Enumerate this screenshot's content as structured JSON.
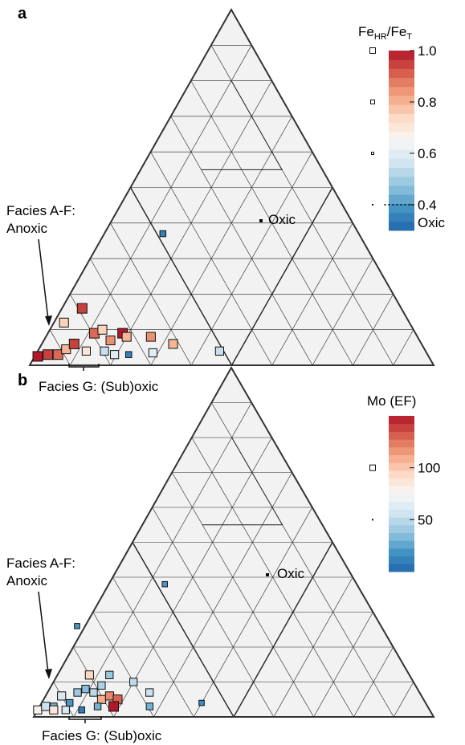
{
  "chart_data": [
    {
      "type": "scatter",
      "panel_label": "a",
      "colorbar": {
        "title_base": "Fe",
        "title_sub1": "HR",
        "title_mid": "/Fe",
        "title_sub2": "T",
        "range": [
          0.3,
          1.0
        ],
        "ticks": [
          "1.0",
          "0.8",
          "0.6",
          "0.4"
        ],
        "tick_values": [
          1.0,
          0.8,
          0.6,
          0.4
        ],
        "threshold_value": 0.4,
        "threshold_label": "Oxic",
        "colors_low_to_high": [
          "#2166ac",
          "#4393c3",
          "#92c5de",
          "#d1e5f0",
          "#f7f7f7",
          "#fddbc7",
          "#f4a582",
          "#d6604d",
          "#b2182b"
        ]
      },
      "annotations": {
        "facies_af_line1": "Facies A-F:",
        "facies_af_line2": "Anoxic",
        "facies_g": "Facies G: (Sub)oxic",
        "oxic": "Oxic"
      },
      "series": [
        {
          "values": [
            [
              0.02,
              0.025,
              1.0,
              1.0
            ],
            [
              0.045,
              0.03,
              0.95,
              1.0
            ],
            [
              0.07,
              0.03,
              0.9,
              1.0
            ],
            [
              0.09,
              0.045,
              0.8,
              0.9
            ],
            [
              0.11,
              0.06,
              0.95,
              1.0
            ],
            [
              0.085,
              0.12,
              0.75,
              0.9
            ],
            [
              0.13,
              0.16,
              0.95,
              1.0
            ],
            [
              0.16,
              0.09,
              0.9,
              1.0
            ],
            [
              0.18,
              0.1,
              0.75,
              0.9
            ],
            [
              0.2,
              0.07,
              0.85,
              0.9
            ],
            [
              0.23,
              0.09,
              1.0,
              1.0
            ],
            [
              0.185,
              0.04,
              0.55,
              0.8
            ],
            [
              0.21,
              0.03,
              0.6,
              0.8
            ],
            [
              0.14,
              0.04,
              0.7,
              0.8
            ],
            [
              0.245,
              0.03,
              0.35,
              0.5
            ],
            [
              0.24,
              0.08,
              0.8,
              0.9
            ],
            [
              0.3,
              0.08,
              0.85,
              0.9
            ],
            [
              0.305,
              0.035,
              0.6,
              0.8
            ],
            [
              0.355,
              0.06,
              0.8,
              0.9
            ],
            [
              0.47,
              0.04,
              0.55,
              0.8
            ],
            [
              0.33,
              0.37,
              0.35,
              0.5
            ]
          ]
        }
      ]
    },
    {
      "type": "scatter",
      "panel_label": "b",
      "colorbar": {
        "title": "Mo (EF)",
        "range": [
          0,
          150
        ],
        "ticks": [
          "100",
          "50"
        ],
        "tick_values": [
          100,
          50
        ],
        "colors_low_to_high": [
          "#2166ac",
          "#4393c3",
          "#92c5de",
          "#d1e5f0",
          "#f7f7f7",
          "#fddbc7",
          "#f4a582",
          "#d6604d",
          "#b2182b"
        ]
      },
      "annotations": {
        "facies_af_line1": "Facies A-F:",
        "facies_af_line2": "Anoxic",
        "facies_g": "Facies G: (Sub)oxic",
        "oxic": "Oxic"
      },
      "series": [
        {
          "values": [
            [
              0.01,
              0.02,
              80,
              0.8
            ],
            [
              0.03,
              0.03,
              55,
              0.8
            ],
            [
              0.05,
              0.03,
              30,
              0.6
            ],
            [
              0.07,
              0.06,
              60,
              0.8
            ],
            [
              0.09,
              0.04,
              20,
              0.6
            ],
            [
              0.11,
              0.07,
              40,
              0.7
            ],
            [
              0.13,
              0.08,
              35,
              0.7
            ],
            [
              0.15,
              0.07,
              50,
              0.7
            ],
            [
              0.17,
              0.09,
              45,
              0.7
            ],
            [
              0.17,
              0.05,
              110,
              0.8
            ],
            [
              0.19,
              0.06,
              120,
              0.8
            ],
            [
              0.21,
              0.05,
              130,
              0.9
            ],
            [
              0.14,
              0.12,
              95,
              0.8
            ],
            [
              0.2,
              0.03,
              150,
              1.0
            ],
            [
              0.16,
              0.03,
              30,
              0.6
            ],
            [
              0.12,
              0.02,
              10,
              0.5
            ],
            [
              0.08,
              0.02,
              60,
              0.7
            ],
            [
              0.19,
              0.12,
              40,
              0.7
            ],
            [
              0.25,
              0.1,
              50,
              0.7
            ],
            [
              0.29,
              0.07,
              55,
              0.7
            ],
            [
              0.29,
              0.03,
              30,
              0.6
            ],
            [
              0.42,
              0.04,
              15,
              0.4
            ],
            [
              0.11,
              0.26,
              20,
              0.4
            ],
            [
              0.33,
              0.38,
              20,
              0.4
            ],
            [
              0.05,
              0.02,
              85,
              0.8
            ]
          ]
        }
      ]
    }
  ]
}
